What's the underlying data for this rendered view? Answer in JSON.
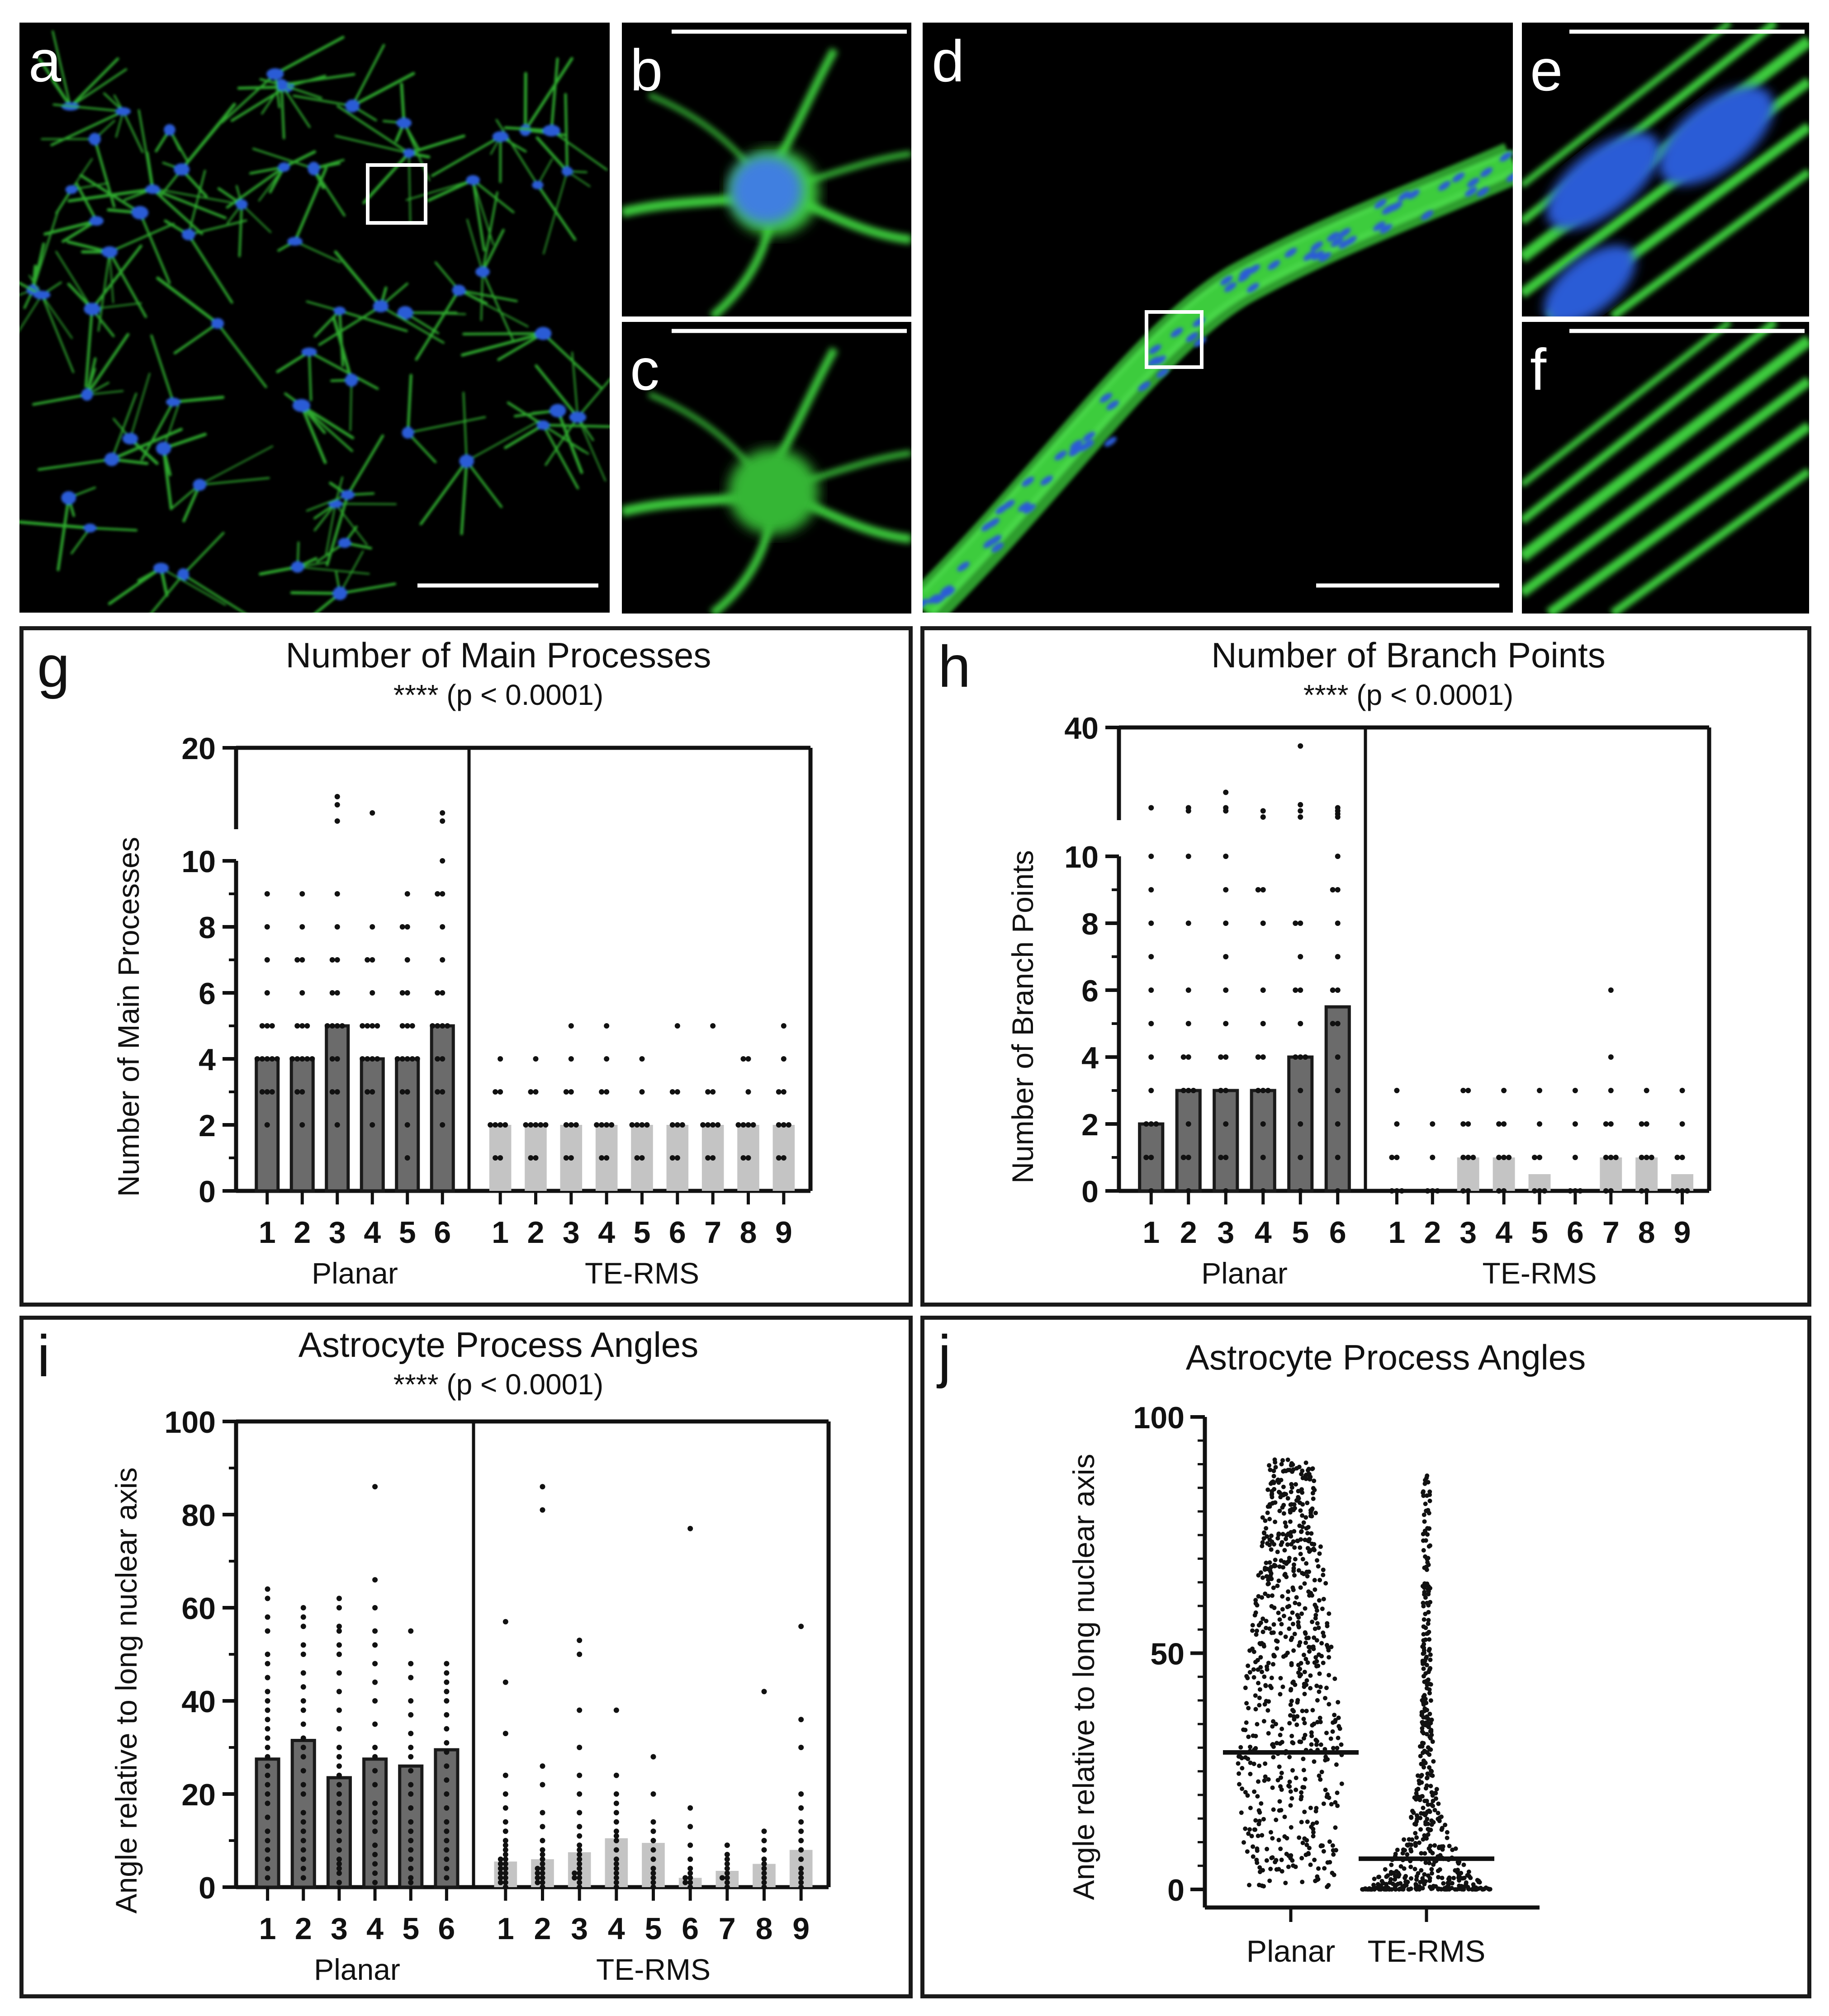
{
  "panels": {
    "a": {
      "label": "a"
    },
    "b": {
      "label": "b"
    },
    "c": {
      "label": "c"
    },
    "d": {
      "label": "d"
    },
    "e": {
      "label": "e"
    },
    "f": {
      "label": "f"
    }
  },
  "colors": {
    "planar_bar": "#6b6b6b",
    "te_rms_bar": "#c4c4c4",
    "axis": "#111111",
    "gfap": "#3ecc3e",
    "nuclei": "#2a5bd6"
  },
  "chart_data": [
    {
      "id": "g",
      "panel_label": "g",
      "type": "bar",
      "title": "Number of Main Processes",
      "subtitle": "**** (p < 0.0001)",
      "ylabel": "Number of Main Processes",
      "axis_break": {
        "lower": [
          0,
          10
        ],
        "upper": [
          10,
          20
        ]
      },
      "lower_ticks": [
        0,
        2,
        4,
        6,
        8,
        10
      ],
      "upper_ticks": [
        10,
        20
      ],
      "groups": [
        {
          "name": "Planar",
          "categories": [
            "1",
            "2",
            "3",
            "4",
            "5",
            "6"
          ],
          "values": [
            4,
            4,
            5,
            4,
            4,
            5
          ]
        },
        {
          "name": "TE-RMS",
          "categories": [
            "1",
            "2",
            "3",
            "4",
            "5",
            "6",
            "7",
            "8",
            "9"
          ],
          "values": [
            2,
            2,
            2,
            2,
            2,
            2,
            2,
            2,
            2
          ]
        }
      ],
      "points": {
        "Planar": [
          [
            2,
            3,
            3,
            3,
            4,
            4,
            4,
            4,
            4,
            5,
            5,
            5,
            6,
            7,
            8,
            9
          ],
          [
            2,
            3,
            3,
            4,
            4,
            4,
            4,
            4,
            5,
            5,
            5,
            6,
            7,
            7,
            8,
            9
          ],
          [
            2,
            3,
            3,
            4,
            4,
            5,
            5,
            5,
            5,
            6,
            6,
            7,
            7,
            8,
            9,
            11,
            13,
            14
          ],
          [
            2,
            3,
            3,
            4,
            4,
            4,
            4,
            5,
            5,
            5,
            5,
            6,
            7,
            7,
            8,
            12
          ],
          [
            1,
            2,
            3,
            3,
            4,
            4,
            4,
            4,
            4,
            5,
            5,
            5,
            6,
            6,
            7,
            8,
            8,
            9
          ],
          [
            2,
            3,
            3,
            4,
            4,
            5,
            5,
            5,
            5,
            6,
            6,
            7,
            8,
            9,
            9,
            10,
            11,
            12
          ]
        ],
        "TE-RMS": [
          [
            1,
            1,
            2,
            2,
            2,
            2,
            3,
            3,
            4
          ],
          [
            1,
            1,
            2,
            2,
            2,
            2,
            2,
            3,
            3,
            4
          ],
          [
            1,
            1,
            2,
            2,
            2,
            3,
            3,
            4,
            5
          ],
          [
            1,
            1,
            2,
            2,
            2,
            2,
            3,
            3,
            4,
            5
          ],
          [
            1,
            1,
            2,
            2,
            2,
            2,
            3,
            4
          ],
          [
            1,
            1,
            2,
            2,
            2,
            3,
            3,
            5
          ],
          [
            1,
            1,
            2,
            2,
            2,
            2,
            3,
            3,
            5
          ],
          [
            1,
            1,
            2,
            2,
            2,
            2,
            3,
            4,
            4
          ],
          [
            1,
            1,
            2,
            2,
            2,
            3,
            3,
            4,
            5
          ]
        ]
      }
    },
    {
      "id": "h",
      "panel_label": "h",
      "type": "bar",
      "title": "Number of Branch Points",
      "subtitle": "**** (p < 0.0001)",
      "ylabel": "Number of Branch Points",
      "axis_break": {
        "lower": [
          0,
          10
        ],
        "upper": [
          10,
          40
        ]
      },
      "lower_ticks": [
        0,
        2,
        4,
        6,
        8,
        10
      ],
      "upper_ticks": [
        10,
        40
      ],
      "groups": [
        {
          "name": "Planar",
          "categories": [
            "1",
            "2",
            "3",
            "4",
            "5",
            "6"
          ],
          "values": [
            2,
            3,
            3,
            3,
            4,
            5.5
          ]
        },
        {
          "name": "TE-RMS",
          "categories": [
            "1",
            "2",
            "3",
            "4",
            "5",
            "6",
            "7",
            "8",
            "9"
          ],
          "values": [
            0,
            0,
            1,
            1,
            0.5,
            0,
            1,
            1,
            0.5
          ]
        }
      ],
      "points": {
        "Planar": [
          [
            0,
            1,
            1,
            2,
            2,
            2,
            3,
            4,
            5,
            6,
            7,
            8,
            9,
            10,
            14
          ],
          [
            0,
            1,
            1,
            2,
            3,
            3,
            3,
            4,
            4,
            5,
            6,
            8,
            10,
            13,
            14
          ],
          [
            0,
            1,
            1,
            2,
            3,
            3,
            4,
            4,
            5,
            6,
            7,
            8,
            9,
            10,
            13,
            14,
            19
          ],
          [
            0,
            1,
            2,
            3,
            3,
            3,
            4,
            4,
            5,
            6,
            8,
            9,
            9,
            11,
            13
          ],
          [
            0,
            1,
            2,
            3,
            4,
            4,
            4,
            5,
            6,
            6,
            7,
            8,
            8,
            11,
            13,
            15,
            34
          ],
          [
            0,
            1,
            2,
            3,
            4,
            5,
            5,
            6,
            6,
            7,
            8,
            9,
            9,
            10,
            11,
            12,
            13,
            14
          ]
        ],
        "TE-RMS": [
          [
            0,
            0,
            0,
            1,
            1,
            2,
            3
          ],
          [
            0,
            0,
            0,
            1,
            2
          ],
          [
            0,
            0,
            1,
            1,
            1,
            2,
            2,
            3,
            3
          ],
          [
            0,
            0,
            1,
            1,
            1,
            2,
            2,
            3
          ],
          [
            0,
            0,
            0,
            1,
            1,
            2,
            3
          ],
          [
            0,
            0,
            0,
            1,
            2,
            3
          ],
          [
            0,
            0,
            1,
            1,
            1,
            2,
            2,
            3,
            4,
            6
          ],
          [
            0,
            0,
            1,
            1,
            1,
            2,
            2,
            3
          ],
          [
            0,
            0,
            0,
            1,
            1,
            2,
            3
          ]
        ]
      }
    },
    {
      "id": "i",
      "panel_label": "i",
      "type": "bar",
      "title": "Astrocyte Process Angles",
      "subtitle": "**** (p < 0.0001)",
      "ylabel": "Angle relative to long nuclear axis",
      "ylim": [
        0,
        100
      ],
      "ticks": [
        0,
        20,
        40,
        60,
        80,
        100
      ],
      "groups": [
        {
          "name": "Planar",
          "categories": [
            "1",
            "2",
            "3",
            "4",
            "5",
            "6"
          ],
          "values": [
            27.5,
            31.5,
            23.5,
            27.5,
            26,
            29.5
          ]
        },
        {
          "name": "TE-RMS",
          "categories": [
            "1",
            "2",
            "3",
            "4",
            "5",
            "6",
            "7",
            "8",
            "9"
          ],
          "values": [
            5.5,
            6,
            7.5,
            10.5,
            9.5,
            2,
            3.5,
            5,
            8
          ]
        }
      ],
      "points": {
        "Planar": [
          [
            2,
            4,
            6,
            8,
            10,
            12,
            15,
            18,
            20,
            22,
            24,
            26,
            28,
            30,
            32,
            34,
            36,
            38,
            40,
            42,
            45,
            48,
            50,
            55,
            58,
            62,
            64
          ],
          [
            2,
            4,
            6,
            8,
            10,
            12,
            14,
            16,
            20,
            22,
            25,
            28,
            30,
            32,
            35,
            38,
            40,
            43,
            46,
            50,
            52,
            56,
            58,
            60
          ],
          [
            1,
            3,
            4,
            5,
            6,
            8,
            10,
            12,
            14,
            16,
            18,
            20,
            22,
            24,
            26,
            28,
            30,
            34,
            38,
            42,
            46,
            50,
            52,
            55,
            56,
            60,
            62
          ],
          [
            1,
            3,
            5,
            7,
            9,
            12,
            14,
            16,
            18,
            22,
            25,
            28,
            30,
            35,
            40,
            44,
            48,
            52,
            55,
            60,
            66,
            86
          ],
          [
            1,
            2,
            4,
            6,
            8,
            10,
            12,
            14,
            17,
            20,
            22,
            25,
            28,
            30,
            33,
            37,
            40,
            45,
            48,
            55
          ],
          [
            2,
            4,
            6,
            8,
            10,
            12,
            14,
            17,
            20,
            23,
            26,
            29,
            31,
            34,
            37,
            40,
            42,
            44,
            46,
            48
          ]
        ],
        "TE-RMS": [
          [
            0,
            1,
            1,
            2,
            2,
            3,
            3,
            4,
            4,
            5,
            5,
            6,
            6,
            7,
            8,
            9,
            10,
            12,
            14,
            17,
            20,
            24,
            33,
            44,
            57
          ],
          [
            0,
            1,
            1,
            2,
            2,
            3,
            3,
            4,
            4,
            5,
            6,
            7,
            8,
            10,
            13,
            16,
            22,
            26,
            81,
            86
          ],
          [
            0,
            1,
            2,
            2,
            3,
            3,
            4,
            5,
            6,
            7,
            8,
            9,
            11,
            13,
            16,
            20,
            24,
            30,
            38,
            50,
            53
          ],
          [
            0,
            1,
            2,
            3,
            4,
            5,
            6,
            8,
            10,
            11,
            12,
            14,
            16,
            18,
            20,
            24,
            38
          ],
          [
            0,
            1,
            2,
            3,
            4,
            6,
            8,
            10,
            12,
            14,
            20,
            28
          ],
          [
            0,
            1,
            1,
            2,
            2,
            3,
            4,
            6,
            9,
            13,
            17,
            77
          ],
          [
            0,
            1,
            2,
            2,
            3,
            4,
            5,
            6,
            7,
            9
          ],
          [
            0,
            1,
            2,
            3,
            4,
            5,
            6,
            8,
            10,
            12,
            42
          ],
          [
            0,
            1,
            2,
            3,
            4,
            6,
            8,
            10,
            12,
            14,
            17,
            20,
            30,
            36,
            56
          ]
        ]
      }
    },
    {
      "id": "j",
      "panel_label": "j",
      "type": "scatter",
      "title": "Astrocyte Process Angles",
      "ylabel": "Angle relative to long nuclear axis",
      "ylim": [
        0,
        100
      ],
      "ticks": [
        0,
        50,
        100
      ],
      "categories": [
        "Planar",
        "TE-RMS"
      ],
      "means": [
        29,
        6.5
      ],
      "distribution": {
        "Planar": {
          "min": 0.5,
          "max": 91,
          "mode": 25
        },
        "TE-RMS": {
          "min": 0,
          "max": 88,
          "mode": 3
        }
      }
    }
  ]
}
